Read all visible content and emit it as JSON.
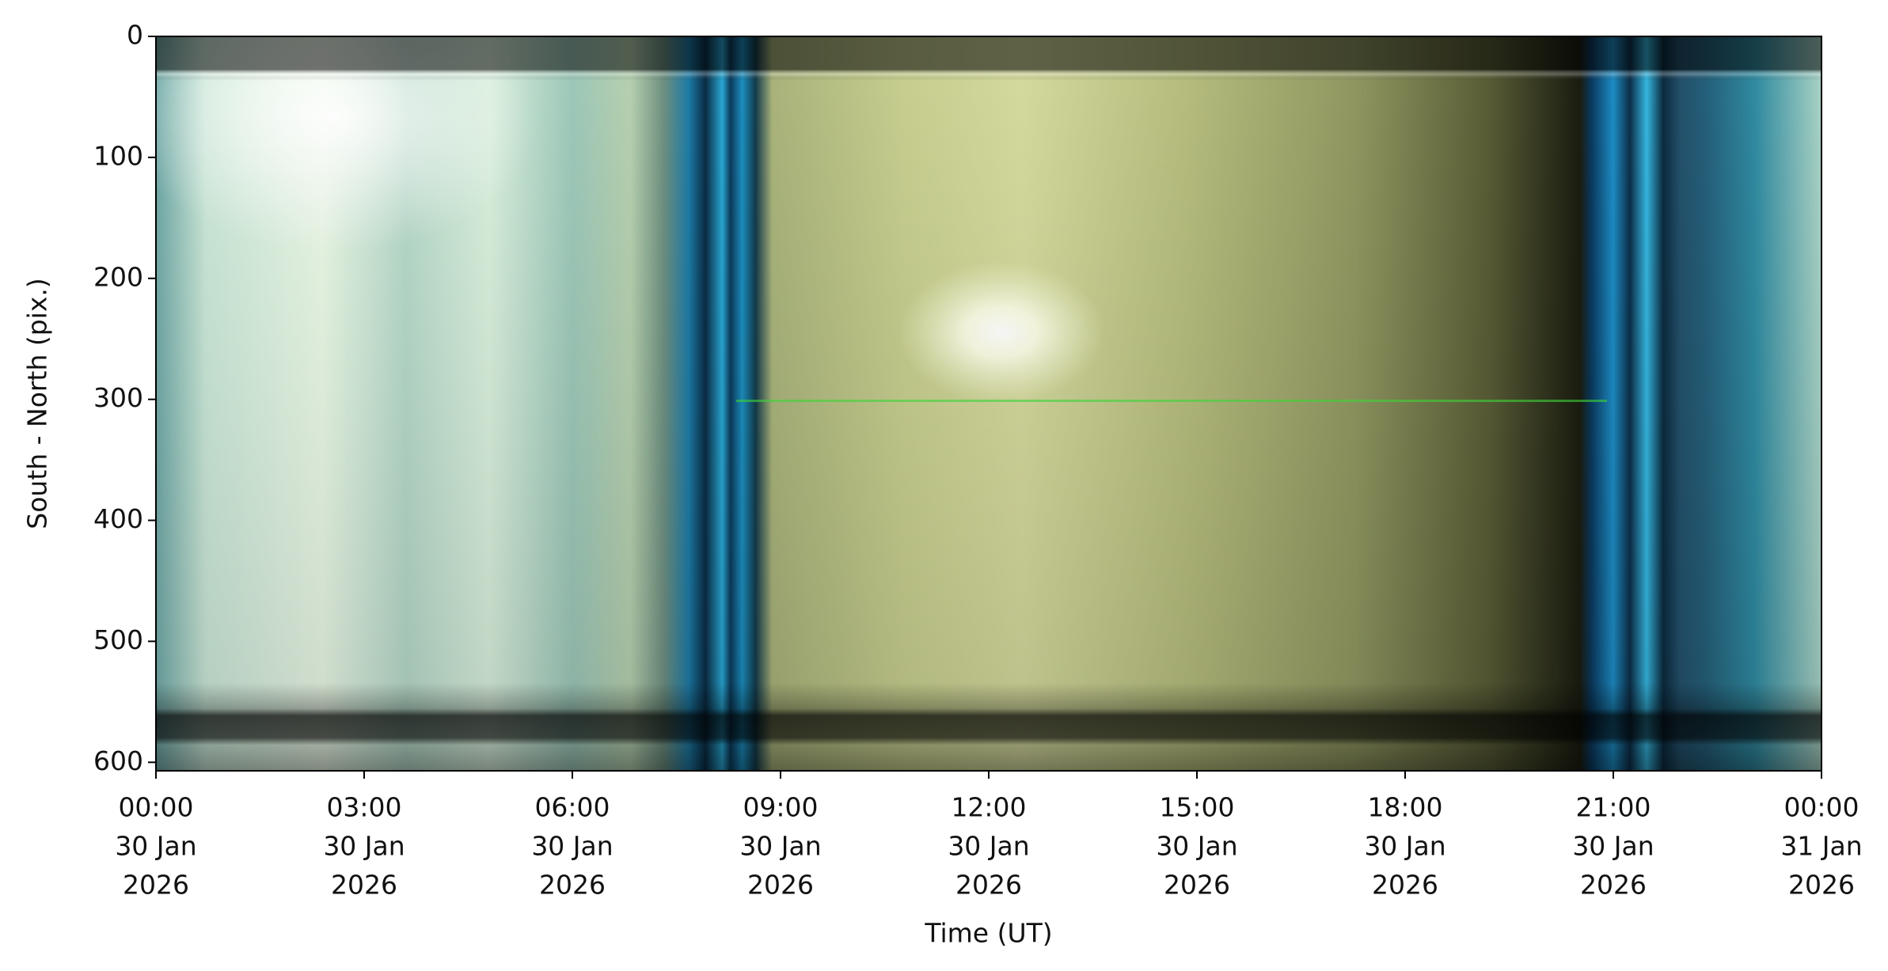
{
  "chart_data": {
    "type": "image",
    "y_label": "South - North (pix.)",
    "x_label": "Time (UT)",
    "ylim": [
      607,
      0
    ],
    "yticks": [
      0,
      100,
      200,
      300,
      400,
      500,
      600
    ],
    "xlim": [
      "2026-01-30T00:00",
      "2026-01-31T00:00"
    ],
    "xticks": [
      {
        "value": "2026-01-30T00:00",
        "label": [
          "00:00",
          "30 Jan",
          "2026"
        ]
      },
      {
        "value": "2026-01-30T03:00",
        "label": [
          "03:00",
          "30 Jan",
          "2026"
        ]
      },
      {
        "value": "2026-01-30T06:00",
        "label": [
          "06:00",
          "30 Jan",
          "2026"
        ]
      },
      {
        "value": "2026-01-30T09:00",
        "label": [
          "09:00",
          "30 Jan",
          "2026"
        ]
      },
      {
        "value": "2026-01-30T12:00",
        "label": [
          "12:00",
          "30 Jan",
          "2026"
        ]
      },
      {
        "value": "2026-01-30T15:00",
        "label": [
          "15:00",
          "30 Jan",
          "2026"
        ]
      },
      {
        "value": "2026-01-30T18:00",
        "label": [
          "18:00",
          "30 Jan",
          "2026"
        ]
      },
      {
        "value": "2026-01-30T21:00",
        "label": [
          "21:00",
          "30 Jan",
          "2026"
        ]
      },
      {
        "value": "2026-01-31T00:00",
        "label": [
          "00:00",
          "31 Jan",
          "2026"
        ]
      }
    ]
  }
}
